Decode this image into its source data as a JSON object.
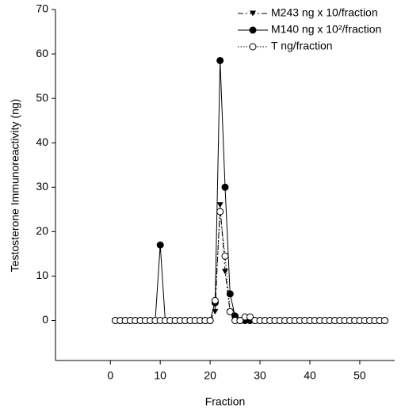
{
  "chart_data": {
    "type": "line",
    "xlabel": "Fraction",
    "ylabel": "Testosterone Immunoreactivity (ng)",
    "x": [
      1,
      2,
      3,
      4,
      5,
      6,
      7,
      8,
      9,
      10,
      11,
      12,
      13,
      14,
      15,
      16,
      17,
      18,
      19,
      20,
      21,
      22,
      23,
      24,
      25,
      26,
      27,
      28,
      29,
      30,
      31,
      32,
      33,
      34,
      35,
      36,
      37,
      38,
      39,
      40,
      41,
      42,
      43,
      44,
      45,
      46,
      47,
      48,
      49,
      50,
      51,
      52,
      53,
      54,
      55
    ],
    "series": [
      {
        "name": "M243 ng x 10/fraction",
        "color": "#000000",
        "marker": "triangle",
        "dash": "7,3,2,3",
        "values": [
          0,
          0,
          0,
          0,
          0,
          0,
          0,
          0,
          0,
          0,
          0,
          0,
          0,
          0,
          0,
          0,
          0,
          0,
          0,
          0,
          2,
          26,
          11,
          2,
          0,
          0,
          0,
          0,
          0,
          0,
          0,
          0,
          0,
          0,
          0,
          0,
          0,
          0,
          0,
          0,
          0,
          0,
          0,
          0,
          0,
          0,
          0,
          0,
          0,
          0,
          0,
          0,
          0,
          0,
          0
        ]
      },
      {
        "name": "M140 ng x 10²/fraction",
        "color": "#000000",
        "marker": "circle",
        "dash": "none",
        "values": [
          0,
          0,
          0,
          0,
          0,
          0,
          0,
          0,
          0,
          17,
          0,
          0,
          0,
          0,
          0,
          0,
          0,
          0,
          0,
          0,
          4,
          58.5,
          30,
          6,
          1,
          0,
          0,
          0,
          0,
          0,
          0,
          0,
          0,
          0,
          0,
          0,
          0,
          0,
          0,
          0,
          0,
          0,
          0,
          0,
          0,
          0,
          0,
          0,
          0,
          0,
          0,
          0,
          0,
          0,
          0
        ]
      },
      {
        "name": "T ng/fraction",
        "color": "#000000",
        "marker": "open-circle",
        "dash": "1.5,2",
        "values": [
          0,
          0,
          0,
          0,
          0,
          0,
          0,
          0,
          0,
          0,
          0,
          0,
          0,
          0,
          0,
          0,
          0,
          0,
          0,
          0,
          4.5,
          24.5,
          14.5,
          2,
          0,
          0,
          0.8,
          0.8,
          0,
          0,
          0,
          0,
          0,
          0,
          0,
          0,
          0,
          0,
          0,
          0,
          0,
          0,
          0,
          0,
          0,
          0,
          0,
          0,
          0,
          0,
          0,
          0,
          0,
          0,
          0
        ]
      }
    ],
    "xlim": [
      -11,
      57
    ],
    "xticks": [
      0,
      10,
      20,
      30,
      40,
      50
    ],
    "ylim": [
      -9,
      70
    ],
    "yticks": [
      0,
      10,
      20,
      30,
      40,
      50,
      60,
      70
    ],
    "grid": false,
    "legend": "top-right"
  }
}
